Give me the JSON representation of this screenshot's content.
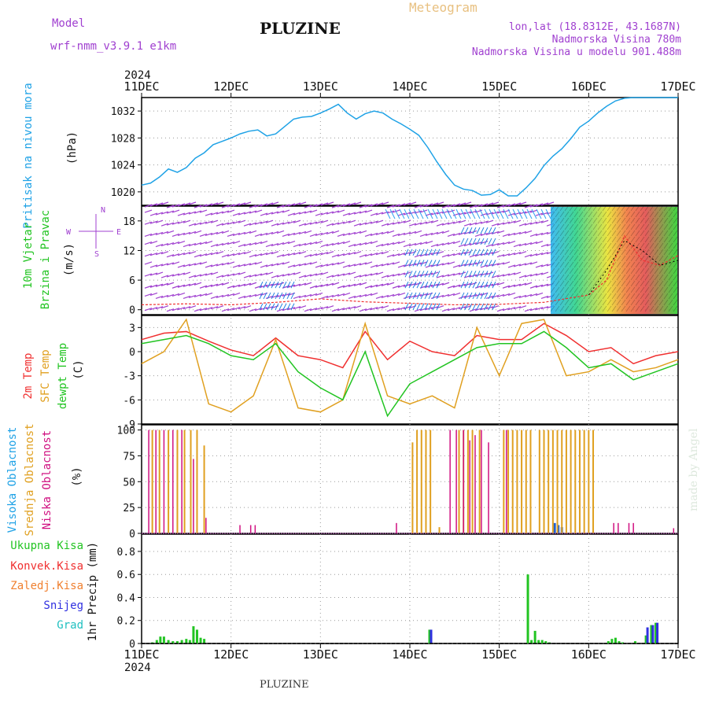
{
  "header": {
    "model_label": "Model",
    "model_name": "wrf-nmm_v3.9.1 e1km",
    "station": "PLUZINE",
    "product": "Meteogram",
    "lonlat": "lon,lat (18.8312E, 43.1687N)",
    "elevation": "Nadmorska Visina 780m",
    "model_elevation": "Nadmorska Visina u modelu 901.488m",
    "year_top": "2024",
    "year_bottom": "2024",
    "footer": "PLUZINE",
    "credit": "made by Angel"
  },
  "colors": {
    "pressure": "#1fa2e6",
    "purple": "#a040d0",
    "green": "#22c422",
    "red": "#f03030",
    "orange": "#e0a020",
    "magenta": "#d01080",
    "blue": "#2060d0",
    "cyan": "#20c0c0",
    "snow_blue": "#3030e0"
  },
  "chart_data": [
    {
      "id": "pressure",
      "type": "line",
      "title_lines": [
        "Pritisak na nivou mora",
        "(hPa)"
      ],
      "x_ticks": [
        "11DEC",
        "12DEC",
        "13DEC",
        "14DEC",
        "15DEC",
        "16DEC",
        "17DEC"
      ],
      "ylim": [
        1018,
        1034
      ],
      "y_ticks": [
        1020,
        1024,
        1028,
        1032
      ],
      "series": [
        {
          "x": [
            0,
            0.1,
            0.2,
            0.3,
            0.4,
            0.5,
            0.6,
            0.7,
            0.8,
            0.9,
            1.0,
            1.1,
            1.2,
            1.3,
            1.4,
            1.5,
            1.6,
            1.7,
            1.8,
            1.9,
            2.0,
            2.1,
            2.2,
            2.3,
            2.4,
            2.5,
            2.6,
            2.7,
            2.8,
            2.9,
            3.0,
            3.1,
            3.2,
            3.3,
            3.4,
            3.5,
            3.6,
            3.7,
            3.8,
            3.9,
            4.0,
            4.1,
            4.2,
            4.3,
            4.4,
            4.5,
            4.6,
            4.7,
            4.8,
            4.9,
            5.0,
            5.1,
            5.2,
            5.3,
            5.4,
            5.5,
            5.6,
            5.7,
            5.8,
            5.9,
            6.0
          ],
          "y": [
            1021.0,
            1021.3,
            1022.2,
            1023.4,
            1022.9,
            1023.6,
            1025.0,
            1025.8,
            1027.0,
            1027.5,
            1028.0,
            1028.6,
            1029.0,
            1029.2,
            1028.3,
            1028.6,
            1029.7,
            1030.8,
            1031.1,
            1031.2,
            1031.7,
            1032.3,
            1033.0,
            1031.7,
            1030.8,
            1031.6,
            1032.0,
            1031.7,
            1030.8,
            1030.1,
            1029.3,
            1028.4,
            1026.6,
            1024.5,
            1022.6,
            1021.0,
            1020.4,
            1020.2,
            1019.5,
            1019.6,
            1020.3,
            1019.4,
            1019.4,
            1020.6,
            1022.0,
            1023.9,
            1025.3,
            1026.4,
            1027.9,
            1029.6,
            1030.5,
            1031.7,
            1032.7,
            1033.5,
            1033.9,
            1034.1,
            1034.4,
            1034.6,
            1034.8,
            1034.9,
            1035.0
          ]
        }
      ]
    },
    {
      "id": "wind",
      "type": "heatmap",
      "title_lines": [
        "10m Vjetar",
        "Brzina i Pravac",
        "(m/s)"
      ],
      "compass_labels": [
        "N",
        "S",
        "W",
        "E"
      ],
      "ylim": [
        -1,
        21
      ],
      "y_ticks": [
        0,
        6,
        12,
        18
      ],
      "speed_x": [
        0,
        0.5,
        1.0,
        1.5,
        2.0,
        2.5,
        3.0,
        3.5,
        4.0,
        4.5,
        5.0,
        5.2,
        5.4,
        5.6,
        5.8,
        6.0
      ],
      "speed_y": [
        1.0,
        1.2,
        1.0,
        1.5,
        2.2,
        1.6,
        1.3,
        1.0,
        1.1,
        1.5,
        3.0,
        6.0,
        15.0,
        10.0,
        9.0,
        11.0
      ],
      "gust_x": [
        5.0,
        5.2,
        5.4,
        5.6,
        5.8,
        6.0
      ],
      "gust_y": [
        3.0,
        8.0,
        14.0,
        12.0,
        9.0,
        10.0
      ]
    },
    {
      "id": "temperature",
      "type": "line",
      "title_lines": [
        "2m Temp",
        "SFC Temp",
        "dewpt Temp",
        "(C)"
      ],
      "ylim": [
        -9,
        4.5
      ],
      "y_ticks": [
        3,
        0,
        -3,
        -6,
        -9
      ],
      "series": [
        {
          "name": "2m Temp",
          "x": [
            0,
            0.25,
            0.5,
            0.75,
            1.0,
            1.25,
            1.5,
            1.75,
            2.0,
            2.25,
            2.5,
            2.75,
            3.0,
            3.25,
            3.5,
            3.75,
            4.0,
            4.25,
            4.5,
            4.75,
            5.0,
            5.25,
            5.5,
            5.75,
            6.0
          ],
          "y": [
            1.5,
            2.3,
            2.5,
            1.3,
            0.2,
            -0.5,
            1.7,
            -0.5,
            -1.0,
            -2.0,
            2.5,
            -1.0,
            1.3,
            0.0,
            -0.5,
            2.0,
            1.5,
            1.5,
            3.5,
            2.0,
            0.0,
            0.5,
            -1.5,
            -0.5,
            0.0
          ]
        },
        {
          "name": "SFC Temp",
          "x": [
            0,
            0.25,
            0.5,
            0.75,
            1.0,
            1.25,
            1.5,
            1.75,
            2.0,
            2.25,
            2.5,
            2.75,
            3.0,
            3.25,
            3.5,
            3.75,
            4.0,
            4.25,
            4.5,
            4.75,
            5.0,
            5.25,
            5.5,
            5.75,
            6.0
          ],
          "y": [
            -1.5,
            0.0,
            4.0,
            -6.5,
            -7.5,
            -5.5,
            1.5,
            -7.0,
            -7.5,
            -6.0,
            3.5,
            -5.5,
            -6.5,
            -5.5,
            -7.0,
            3.0,
            -3.0,
            3.5,
            4.0,
            -3.0,
            -2.5,
            -1.0,
            -2.5,
            -2.0,
            -1.0
          ]
        },
        {
          "name": "dewpt Temp",
          "x": [
            0,
            0.25,
            0.5,
            0.75,
            1.0,
            1.25,
            1.5,
            1.75,
            2.0,
            2.25,
            2.5,
            2.75,
            3.0,
            3.25,
            3.5,
            3.75,
            4.0,
            4.25,
            4.5,
            4.75,
            5.0,
            5.25,
            5.5,
            5.75,
            6.0
          ],
          "y": [
            1.0,
            1.5,
            2.0,
            1.0,
            -0.5,
            -1.0,
            1.0,
            -2.5,
            -4.5,
            -6.0,
            0.0,
            -8.0,
            -4.0,
            -2.5,
            -1.0,
            0.5,
            1.0,
            1.0,
            2.5,
            0.5,
            -2.0,
            -1.5,
            -3.5,
            -2.5,
            -1.5
          ]
        }
      ]
    },
    {
      "id": "clouds",
      "type": "bar",
      "title_lines": [
        "Visoka Oblacnost",
        "Srednja Oblacnost",
        "Niska Oblacnost",
        "(%)"
      ],
      "ylim": [
        0,
        105
      ],
      "y_ticks": [
        0,
        25,
        50,
        75,
        100
      ],
      "series": [
        {
          "name": "Visoka Oblacnost",
          "x": [
            4.62,
            4.66,
            4.7
          ],
          "values": [
            10,
            8,
            6
          ]
        },
        {
          "name": "Srednja Oblacnost",
          "x": [
            0.12,
            0.2,
            0.3,
            0.4,
            0.48,
            0.55,
            0.62,
            0.7,
            3.03,
            3.08,
            3.13,
            3.18,
            3.23,
            3.33,
            3.55,
            3.6,
            3.65,
            3.7,
            3.78,
            4.05,
            4.1,
            4.15,
            4.2,
            4.25,
            4.3,
            4.35,
            4.45,
            4.5,
            4.55,
            4.6,
            4.65,
            4.7,
            4.75,
            4.8,
            4.85,
            4.9,
            4.95,
            5.0,
            5.05
          ],
          "values": [
            100,
            100,
            100,
            100,
            100,
            100,
            100,
            85,
            88,
            100,
            100,
            100,
            100,
            6,
            100,
            100,
            100,
            100,
            100,
            100,
            100,
            100,
            100,
            100,
            100,
            100,
            100,
            100,
            100,
            100,
            100,
            100,
            100,
            100,
            100,
            100,
            100,
            100,
            100
          ]
        },
        {
          "name": "Niska Oblacnost",
          "x": [
            0.08,
            0.16,
            0.25,
            0.35,
            0.45,
            0.58,
            0.72,
            1.1,
            1.22,
            1.27,
            2.85,
            3.45,
            3.52,
            3.6,
            3.67,
            3.73,
            3.8,
            3.88,
            4.08,
            5.28,
            5.33,
            5.45,
            5.5,
            5.95
          ],
          "values": [
            100,
            100,
            100,
            100,
            100,
            72,
            15,
            8,
            8,
            8,
            10,
            100,
            100,
            100,
            90,
            95,
            100,
            88,
            100,
            10,
            10,
            10,
            10,
            5
          ]
        }
      ]
    },
    {
      "id": "precip",
      "type": "bar",
      "title_lines": [
        "Ukupna Kisa",
        "Konvek.Kisa",
        "Zaledj.Kisa",
        "Snijeg",
        "Grad",
        "1hr Precip (mm)"
      ],
      "ylim": [
        0,
        0.95
      ],
      "y_ticks": [
        0,
        0.2,
        0.4,
        0.6,
        0.8
      ],
      "x_ticks": [
        "11DEC",
        "12DEC",
        "13DEC",
        "14DEC",
        "15DEC",
        "16DEC",
        "17DEC"
      ],
      "series": [
        {
          "name": "Ukupna Kisa",
          "x": [
            0.12,
            0.17,
            0.21,
            0.25,
            0.3,
            0.35,
            0.4,
            0.45,
            0.5,
            0.54,
            0.58,
            0.62,
            0.66,
            0.7,
            3.22,
            4.32,
            4.36,
            4.4,
            4.44,
            4.48,
            4.52,
            4.56,
            5.22,
            5.26,
            5.3,
            5.34,
            5.38,
            5.52,
            5.64,
            5.7,
            5.75
          ],
          "values": [
            0.01,
            0.03,
            0.06,
            0.06,
            0.03,
            0.02,
            0.02,
            0.03,
            0.04,
            0.03,
            0.15,
            0.12,
            0.05,
            0.04,
            0.12,
            0.6,
            0.03,
            0.11,
            0.03,
            0.03,
            0.02,
            0.01,
            0.02,
            0.04,
            0.05,
            0.02,
            0.01,
            0.02,
            0.07,
            0.16,
            0.18
          ]
        },
        {
          "name": "Snijeg",
          "x": [
            3.22,
            5.64,
            5.7,
            5.75
          ],
          "values": [
            0.12,
            0.14,
            0.16,
            0.18
          ]
        }
      ]
    }
  ]
}
